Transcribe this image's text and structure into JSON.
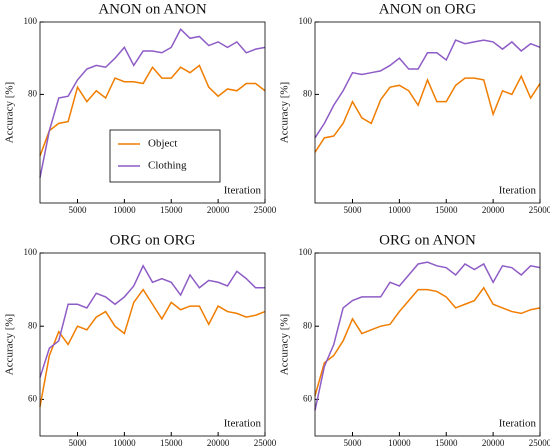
{
  "chart_data": [
    {
      "type": "line",
      "title": "ANON on ANON",
      "xlabel": "Iteration",
      "ylabel": "Accuracy [%]",
      "x": [
        1000,
        2000,
        3000,
        4000,
        5000,
        6000,
        7000,
        8000,
        9000,
        10000,
        11000,
        12000,
        13000,
        14000,
        15000,
        16000,
        17000,
        18000,
        19000,
        20000,
        21000,
        22000,
        23000,
        24000,
        25000
      ],
      "series": [
        {
          "name": "Object",
          "color": "#f07d00",
          "values": [
            63,
            70,
            72,
            72.5,
            82,
            78,
            81,
            79,
            84.5,
            83.5,
            83.5,
            83,
            87.5,
            84.5,
            84.5,
            87.5,
            86,
            88,
            82,
            79.5,
            81.5,
            81,
            83,
            83,
            81
          ]
        },
        {
          "name": "Clothing",
          "color": "#8e5cc6",
          "values": [
            57,
            70,
            79,
            79.5,
            84,
            87,
            88,
            87.5,
            90,
            93,
            88,
            92,
            92,
            91.5,
            93,
            98,
            95.5,
            96,
            93.5,
            94.5,
            93,
            94.5,
            91.5,
            92.5,
            93
          ]
        }
      ],
      "xlim": [
        1000,
        25000
      ],
      "ylim": [
        50,
        100
      ],
      "xticks": [
        5000,
        10000,
        15000,
        20000,
        25000
      ],
      "yticks": [
        80,
        100
      ],
      "legend": "center"
    },
    {
      "type": "line",
      "title": "ANON on ORG",
      "xlabel": "Iteration",
      "ylabel": "Accuracy [%]",
      "x": [
        1000,
        2000,
        3000,
        4000,
        5000,
        6000,
        7000,
        8000,
        9000,
        10000,
        11000,
        12000,
        13000,
        14000,
        15000,
        16000,
        17000,
        18000,
        19000,
        20000,
        21000,
        22000,
        23000,
        24000,
        25000
      ],
      "series": [
        {
          "name": "Object",
          "color": "#f07d00",
          "values": [
            64,
            68,
            68.5,
            72,
            78,
            73.5,
            72,
            78.5,
            82,
            82.5,
            81,
            77,
            84,
            78,
            78,
            82.5,
            84.5,
            84.5,
            84,
            74.5,
            81,
            80,
            85,
            79,
            83
          ]
        },
        {
          "name": "Clothing",
          "color": "#8e5cc6",
          "values": [
            68,
            72,
            77,
            81,
            86,
            85.5,
            86,
            86.5,
            88,
            90,
            87,
            87,
            91.5,
            91.5,
            89.5,
            95,
            94,
            94.5,
            95,
            94.5,
            92.5,
            94.5,
            92,
            94,
            93
          ]
        }
      ],
      "xlim": [
        1000,
        25000
      ],
      "ylim": [
        50,
        100
      ],
      "xticks": [
        5000,
        10000,
        15000,
        20000,
        25000
      ],
      "yticks": [
        80,
        100
      ]
    },
    {
      "type": "line",
      "title": "ORG on ORG",
      "xlabel": "Iteration",
      "ylabel": "Accuracy [%]",
      "x": [
        1000,
        2000,
        3000,
        4000,
        5000,
        6000,
        7000,
        8000,
        9000,
        10000,
        11000,
        12000,
        13000,
        14000,
        15000,
        16000,
        17000,
        18000,
        19000,
        20000,
        21000,
        22000,
        23000,
        24000,
        25000
      ],
      "series": [
        {
          "name": "Object",
          "color": "#f07d00",
          "values": [
            58,
            72,
            78.5,
            75,
            80,
            79,
            82.5,
            84,
            80,
            78,
            86.5,
            90,
            86,
            82,
            86.5,
            84.5,
            85.5,
            85.5,
            80.5,
            85.5,
            84,
            83.5,
            82.5,
            83,
            84
          ]
        },
        {
          "name": "Clothing",
          "color": "#8e5cc6",
          "values": [
            66,
            74,
            76,
            86,
            86,
            85,
            89,
            88,
            86,
            88,
            91,
            96.5,
            92,
            93,
            92,
            88.5,
            94,
            90.5,
            92.5,
            92,
            91,
            95,
            93,
            90.5,
            90.5
          ]
        }
      ],
      "xlim": [
        1000,
        25000
      ],
      "ylim": [
        50,
        100
      ],
      "xticks": [
        5000,
        10000,
        15000,
        20000,
        25000
      ],
      "yticks": [
        60,
        80,
        100
      ]
    },
    {
      "type": "line",
      "title": "ORG on ANON",
      "xlabel": "Iteration",
      "ylabel": "Accuracy [%]",
      "x": [
        1000,
        2000,
        3000,
        4000,
        5000,
        6000,
        7000,
        8000,
        9000,
        10000,
        11000,
        12000,
        13000,
        14000,
        15000,
        16000,
        17000,
        18000,
        19000,
        20000,
        21000,
        22000,
        23000,
        24000,
        25000
      ],
      "series": [
        {
          "name": "Object",
          "color": "#f07d00",
          "values": [
            61,
            70,
            72,
            76,
            82,
            78,
            79,
            80,
            80.5,
            84,
            87,
            90,
            90,
            89.5,
            88,
            85,
            86,
            87,
            90.5,
            86,
            85,
            84,
            83.5,
            84.5,
            85
          ]
        },
        {
          "name": "Clothing",
          "color": "#8e5cc6",
          "values": [
            57,
            69,
            75,
            85,
            87,
            88,
            88,
            88,
            92,
            91,
            94,
            97,
            97.5,
            96.5,
            96,
            94,
            97,
            95.5,
            97,
            92,
            96.5,
            96,
            94,
            96.5,
            96
          ]
        }
      ],
      "xlim": [
        1000,
        25000
      ],
      "ylim": [
        50,
        100
      ],
      "xticks": [
        5000,
        10000,
        15000,
        20000,
        25000
      ],
      "yticks": [
        60,
        80,
        100
      ]
    }
  ]
}
